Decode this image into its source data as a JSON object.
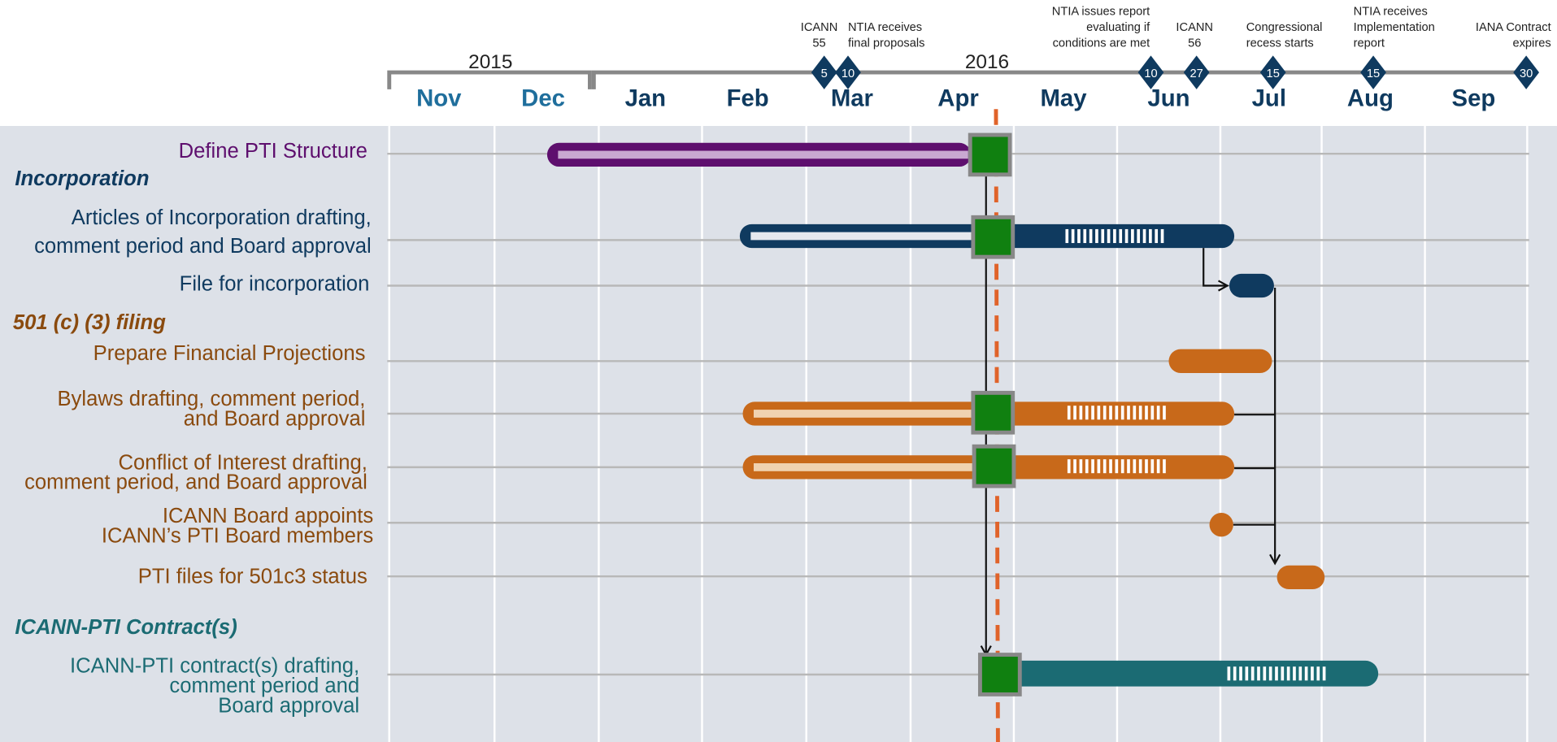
{
  "timeline": {
    "years": [
      "2015",
      "2016"
    ],
    "months": [
      "Nov",
      "Dec",
      "Jan",
      "Feb",
      "Mar",
      "Apr",
      "May",
      "Jun",
      "Jul",
      "Aug",
      "Sep"
    ],
    "milestones": [
      {
        "day": "5",
        "label": [
          "ICANN",
          "55"
        ]
      },
      {
        "day": "10",
        "label": [
          "NTIA receives",
          "final proposals"
        ]
      },
      {
        "day": "10",
        "label": [
          "NTIA issues report",
          "evaluating if",
          "conditions are met"
        ]
      },
      {
        "day": "27",
        "label": [
          "ICANN",
          "56"
        ]
      },
      {
        "day": "15",
        "label": [
          "Congressional",
          "recess starts"
        ]
      },
      {
        "day": "15",
        "label": [
          "NTIA receives",
          "Implementation",
          "report"
        ]
      },
      {
        "day": "30",
        "label": [
          "IANA Contract",
          "expires"
        ]
      }
    ],
    "sections": [
      "Incorporation",
      "501 (c) (3) filing",
      "ICANN-PTI Contract(s)"
    ],
    "tasks": [
      {
        "label": [
          "Define PTI Structure"
        ]
      },
      {
        "label": [
          "Articles of Incorporation drafting,",
          "comment period and Board approval"
        ]
      },
      {
        "label": [
          "File for incorporation"
        ]
      },
      {
        "label": [
          "Prepare Financial Projections"
        ]
      },
      {
        "label": [
          "Bylaws drafting, comment period,",
          "and Board approval"
        ]
      },
      {
        "label": [
          "Conflict of Interest drafting,",
          "comment period, and Board approval"
        ]
      },
      {
        "label": [
          "ICANN Board appoints",
          "ICANN’s PTI Board members"
        ]
      },
      {
        "label": [
          "PTI files for 501c3 status"
        ]
      },
      {
        "label": [
          "ICANN-PTI contract(s) drafting,",
          "comment period and",
          "Board approval"
        ]
      }
    ]
  }
}
